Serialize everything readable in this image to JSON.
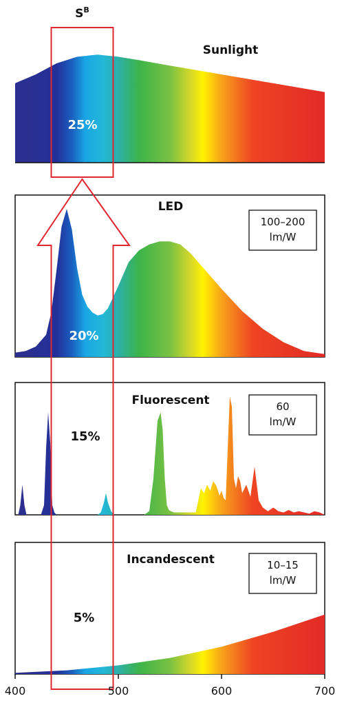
{
  "chart_data": {
    "type": "area",
    "x_range": [
      400,
      700
    ],
    "x_ticks": [
      400,
      500,
      600,
      700
    ],
    "band": {
      "label": "S",
      "label_sup": "B",
      "range": [
        435,
        495
      ],
      "color": "#e0262e"
    },
    "colors": {
      "frame": "#111111",
      "spectrum_stops": [
        {
          "nm": 410,
          "color": "#2b2f8f"
        },
        {
          "nm": 440,
          "color": "#23309a"
        },
        {
          "nm": 455,
          "color": "#1a5fc0"
        },
        {
          "nm": 468,
          "color": "#1aa6e4"
        },
        {
          "nm": 485,
          "color": "#22b8d8"
        },
        {
          "nm": 500,
          "color": "#2cb0a8"
        },
        {
          "nm": 520,
          "color": "#3cb44a"
        },
        {
          "nm": 550,
          "color": "#7ac143"
        },
        {
          "nm": 570,
          "color": "#d6d829"
        },
        {
          "nm": 582,
          "color": "#fff200"
        },
        {
          "nm": 600,
          "color": "#f7a21b"
        },
        {
          "nm": 630,
          "color": "#ee4523"
        },
        {
          "nm": 700,
          "color": "#e22a26"
        }
      ]
    },
    "panels": [
      {
        "name": "Sunlight",
        "band_fraction_label": "25%",
        "efficacy": null,
        "framed": false,
        "x": [
          400,
          420,
          440,
          460,
          480,
          500,
          520,
          550,
          600,
          650,
          700
        ],
        "y": [
          0.72,
          0.8,
          0.9,
          0.96,
          0.98,
          0.96,
          0.93,
          0.88,
          0.8,
          0.72,
          0.64
        ]
      },
      {
        "name": "LED",
        "band_fraction_label": "20%",
        "efficacy": [
          "100–200",
          "lm/W"
        ],
        "framed": true,
        "x": [
          400,
          410,
          420,
          430,
          435,
          440,
          445,
          450,
          455,
          460,
          465,
          470,
          475,
          480,
          485,
          490,
          500,
          510,
          520,
          530,
          540,
          550,
          560,
          570,
          580,
          600,
          620,
          640,
          660,
          680,
          700
        ],
        "y": [
          0.03,
          0.04,
          0.07,
          0.15,
          0.3,
          0.58,
          0.88,
          1.0,
          0.86,
          0.6,
          0.42,
          0.34,
          0.3,
          0.28,
          0.29,
          0.33,
          0.48,
          0.64,
          0.72,
          0.76,
          0.78,
          0.78,
          0.76,
          0.7,
          0.62,
          0.46,
          0.31,
          0.19,
          0.1,
          0.04,
          0.02
        ]
      },
      {
        "name": "Fluorescent",
        "band_fraction_label": "15%",
        "efficacy": [
          "60",
          "lm/W"
        ],
        "framed": true,
        "x": [
          400,
          403,
          405,
          407,
          409,
          411,
          413,
          425,
          428,
          430,
          432,
          434,
          436,
          438,
          440,
          480,
          483,
          486,
          488,
          490,
          493,
          496,
          525,
          530,
          534,
          538,
          541,
          543,
          545,
          547,
          549,
          551,
          554,
          558,
          562,
          575,
          577,
          580,
          583,
          586,
          589,
          592,
          595,
          598,
          600,
          602,
          604,
          606,
          608,
          610,
          612,
          614,
          616,
          618,
          620,
          624,
          628,
          632,
          636,
          640,
          645,
          650,
          652,
          655,
          660,
          665,
          670,
          675,
          680,
          685,
          690,
          695,
          700
        ],
        "y": [
          0.0,
          0.0,
          0.08,
          0.25,
          0.08,
          0.0,
          0.0,
          0.0,
          0.08,
          0.55,
          0.85,
          0.6,
          0.08,
          0.02,
          0.0,
          0.0,
          0.02,
          0.1,
          0.18,
          0.1,
          0.03,
          0.0,
          0.0,
          0.03,
          0.3,
          0.78,
          0.85,
          0.7,
          0.3,
          0.08,
          0.04,
          0.03,
          0.02,
          0.02,
          0.02,
          0.02,
          0.1,
          0.22,
          0.18,
          0.25,
          0.2,
          0.28,
          0.24,
          0.16,
          0.2,
          0.14,
          0.12,
          0.55,
          0.98,
          0.9,
          0.3,
          0.22,
          0.32,
          0.28,
          0.18,
          0.25,
          0.15,
          0.4,
          0.12,
          0.06,
          0.03,
          0.06,
          0.05,
          0.03,
          0.02,
          0.04,
          0.02,
          0.03,
          0.02,
          0.01,
          0.03,
          0.02,
          0.0
        ]
      },
      {
        "name": "Incandescent",
        "band_fraction_label": "5%",
        "efficacy": [
          "10–15",
          "lm/W"
        ],
        "framed": true,
        "x": [
          400,
          450,
          500,
          550,
          600,
          650,
          700
        ],
        "y": [
          0.01,
          0.03,
          0.07,
          0.13,
          0.22,
          0.34,
          0.48
        ]
      }
    ]
  }
}
